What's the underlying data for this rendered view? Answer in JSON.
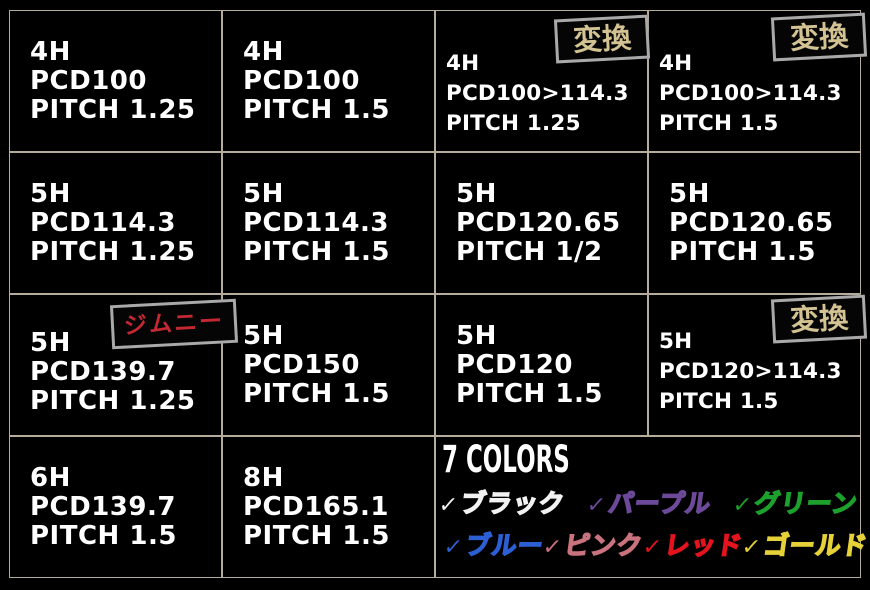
{
  "table": {
    "rows": [
      {
        "cells": [
          {
            "holes": "4H",
            "pcd": "PCD100",
            "pitch": "PITCH 1.25"
          },
          {
            "holes": "4H",
            "pcd": "PCD100",
            "pitch": "PITCH 1.5"
          },
          {
            "holes": "4H",
            "pcd": "PCD100>114.3",
            "pitch": "PITCH 1.25",
            "badge": "変換"
          },
          {
            "holes": "4H",
            "pcd": "PCD100>114.3",
            "pitch": "PITCH 1.5",
            "badge": "変換"
          }
        ]
      },
      {
        "cells": [
          {
            "holes": "5H",
            "pcd": "PCD114.3",
            "pitch": "PITCH 1.25"
          },
          {
            "holes": "5H",
            "pcd": "PCD114.3",
            "pitch": "PITCH 1.5"
          },
          {
            "holes": "5H",
            "pcd": "PCD120.65",
            "pitch": "PITCH 1/2"
          },
          {
            "holes": "5H",
            "pcd": "PCD120.65",
            "pitch": "PITCH 1.5"
          }
        ]
      },
      {
        "cells": [
          {
            "holes": "5H",
            "pcd": "PCD139.7",
            "pitch": "PITCH 1.25",
            "badge": "ジムニー"
          },
          {
            "holes": "5H",
            "pcd": "PCD150",
            "pitch": "PITCH 1.5"
          },
          {
            "holes": "5H",
            "pcd": "PCD120",
            "pitch": "PITCH 1.5"
          },
          {
            "holes": "5H",
            "pcd": "PCD120>114.3",
            "pitch": "PITCH 1.5",
            "badge": "変換"
          }
        ]
      },
      {
        "cells": [
          {
            "holes": "6H",
            "pcd": "PCD139.7",
            "pitch": "PITCH 1.5"
          },
          {
            "holes": "8H",
            "pcd": "PCD165.1",
            "pitch": "PITCH 1.5"
          }
        ]
      }
    ]
  },
  "colors_section": {
    "title": "7 COLORS",
    "check_icon": "✓",
    "items": [
      {
        "label": "ブラック",
        "color": "#f2f2f2"
      },
      {
        "label": "パープル",
        "color": "#6d4a99"
      },
      {
        "label": "グリーン",
        "color": "#1ba12c"
      },
      {
        "label": "ブルー",
        "color": "#2d5fd4"
      },
      {
        "label": "ピンク",
        "color": "#c9737f"
      },
      {
        "label": "レッド",
        "color": "#e5131d"
      },
      {
        "label": "ゴールド",
        "color": "#e7d138"
      }
    ]
  },
  "theme": {
    "background": "#000000",
    "text": "#ffffff",
    "grid_line": "#b6ac9c",
    "badge_border": "#a9a9a9",
    "badge_gold_text": "#d3c292",
    "badge_red_text": "#c32833"
  }
}
